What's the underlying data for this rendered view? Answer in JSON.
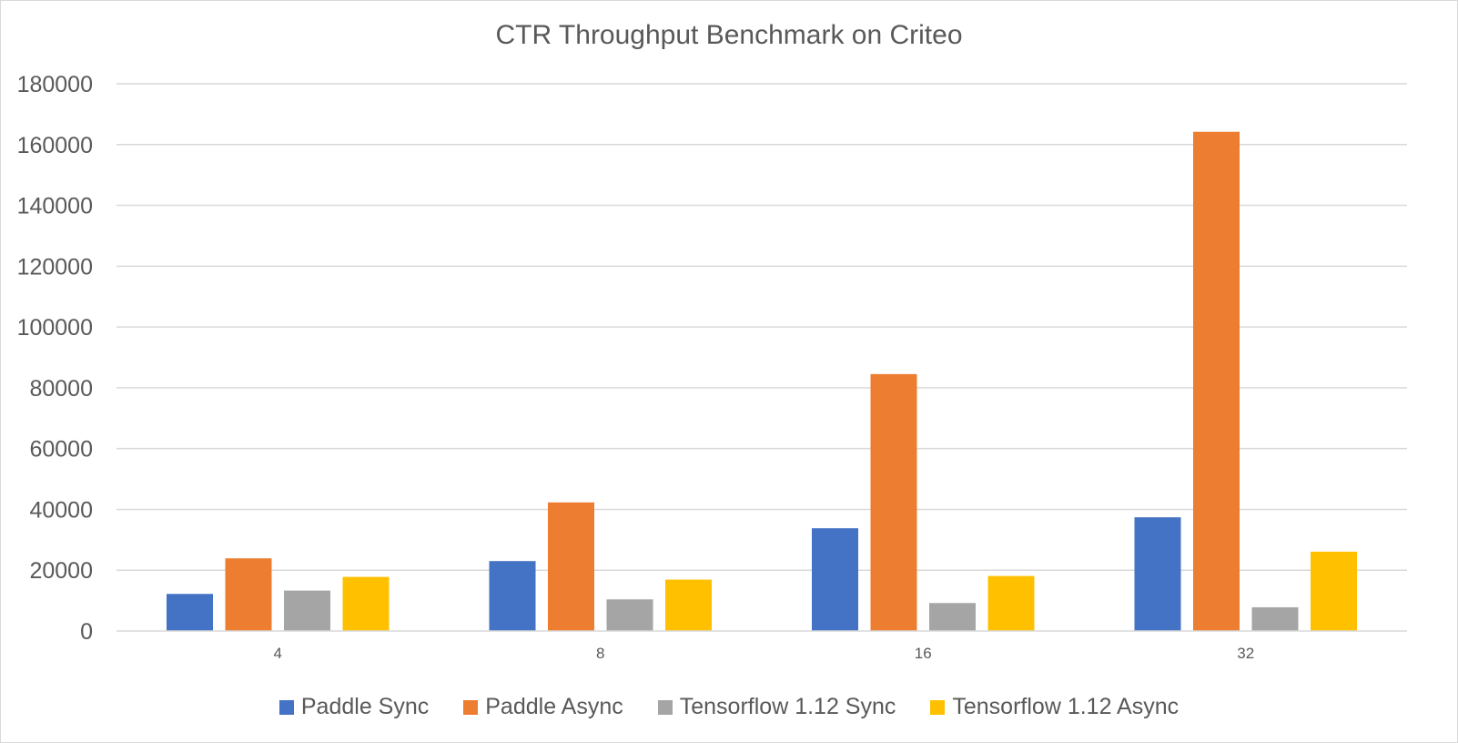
{
  "chart_data": {
    "type": "bar",
    "title": "CTR Throughput Benchmark on Criteo",
    "xlabel": "",
    "ylabel": "",
    "categories": [
      "4",
      "8",
      "16",
      "32"
    ],
    "series": [
      {
        "name": "Paddle Sync",
        "color": "#4472c4",
        "values": [
          12200,
          23000,
          33800,
          37400
        ]
      },
      {
        "name": "Paddle Async",
        "color": "#ed7d31",
        "values": [
          23900,
          42300,
          84500,
          164200
        ]
      },
      {
        "name": "Tensorflow 1.12 Sync",
        "color": "#a5a5a5",
        "values": [
          13300,
          10400,
          9200,
          7800
        ]
      },
      {
        "name": "Tensorflow 1.12 Async",
        "color": "#ffc000",
        "values": [
          17800,
          16900,
          18100,
          26100
        ]
      }
    ],
    "ylim": [
      0,
      180000
    ],
    "yticks": [
      0,
      20000,
      40000,
      60000,
      80000,
      100000,
      120000,
      140000,
      160000,
      180000
    ],
    "grid": true,
    "legend_position": "bottom"
  }
}
